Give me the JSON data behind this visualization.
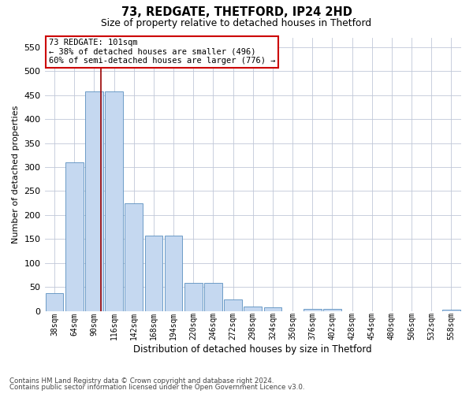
{
  "title1": "73, REDGATE, THETFORD, IP24 2HD",
  "title2": "Size of property relative to detached houses in Thetford",
  "xlabel": "Distribution of detached houses by size in Thetford",
  "ylabel": "Number of detached properties",
  "footnote1": "Contains HM Land Registry data © Crown copyright and database right 2024.",
  "footnote2": "Contains public sector information licensed under the Open Government Licence v3.0.",
  "categories": [
    "38sqm",
    "64sqm",
    "90sqm",
    "116sqm",
    "142sqm",
    "168sqm",
    "194sqm",
    "220sqm",
    "246sqm",
    "272sqm",
    "298sqm",
    "324sqm",
    "350sqm",
    "376sqm",
    "402sqm",
    "428sqm",
    "454sqm",
    "480sqm",
    "506sqm",
    "532sqm",
    "558sqm"
  ],
  "values": [
    38,
    310,
    457,
    457,
    225,
    158,
    158,
    58,
    58,
    24,
    10,
    8,
    0,
    5,
    5,
    0,
    0,
    0,
    0,
    0,
    3
  ],
  "bar_color": "#c5d8f0",
  "bar_edge_color": "#5a8fc0",
  "property_line_x": 2.35,
  "property_line_color": "#990000",
  "annotation_text1": "73 REDGATE: 101sqm",
  "annotation_text2": "← 38% of detached houses are smaller (496)",
  "annotation_text3": "60% of semi-detached houses are larger (776) →",
  "annotation_box_color": "#cc0000",
  "ylim": [
    0,
    570
  ],
  "yticks": [
    0,
    50,
    100,
    150,
    200,
    250,
    300,
    350,
    400,
    450,
    500,
    550
  ],
  "background_color": "#ffffff",
  "grid_color": "#c0c8d8"
}
